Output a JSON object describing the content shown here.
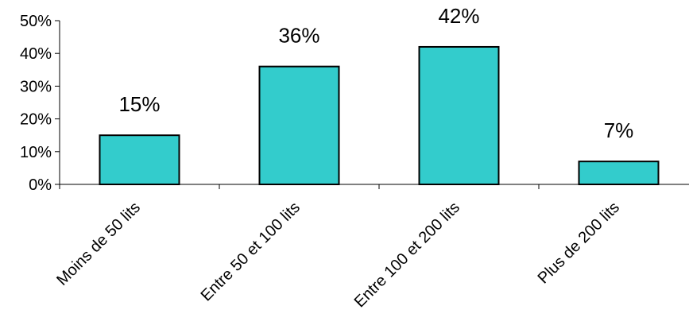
{
  "chart_data": {
    "type": "bar",
    "categories": [
      "Moins de 50 lits",
      "Entre 50 et 100 lits",
      "Entre 100 et 200 lits",
      "Plus de 200 lits"
    ],
    "values": [
      15,
      36,
      42,
      7
    ],
    "value_labels": [
      "15%",
      "36%",
      "42%",
      "7%"
    ],
    "y_ticks": [
      {
        "value": 0,
        "label": "0%"
      },
      {
        "value": 10,
        "label": "10%"
      },
      {
        "value": 20,
        "label": "20%"
      },
      {
        "value": 30,
        "label": "30%"
      },
      {
        "value": 40,
        "label": "40%"
      },
      {
        "value": 50,
        "label": "50%"
      }
    ],
    "ylim": [
      0,
      50
    ],
    "grid": false,
    "legend": "none",
    "bar_color": "#33CCCC",
    "bar_border_color": "#000000",
    "title": "",
    "xlabel": "",
    "ylabel": ""
  }
}
